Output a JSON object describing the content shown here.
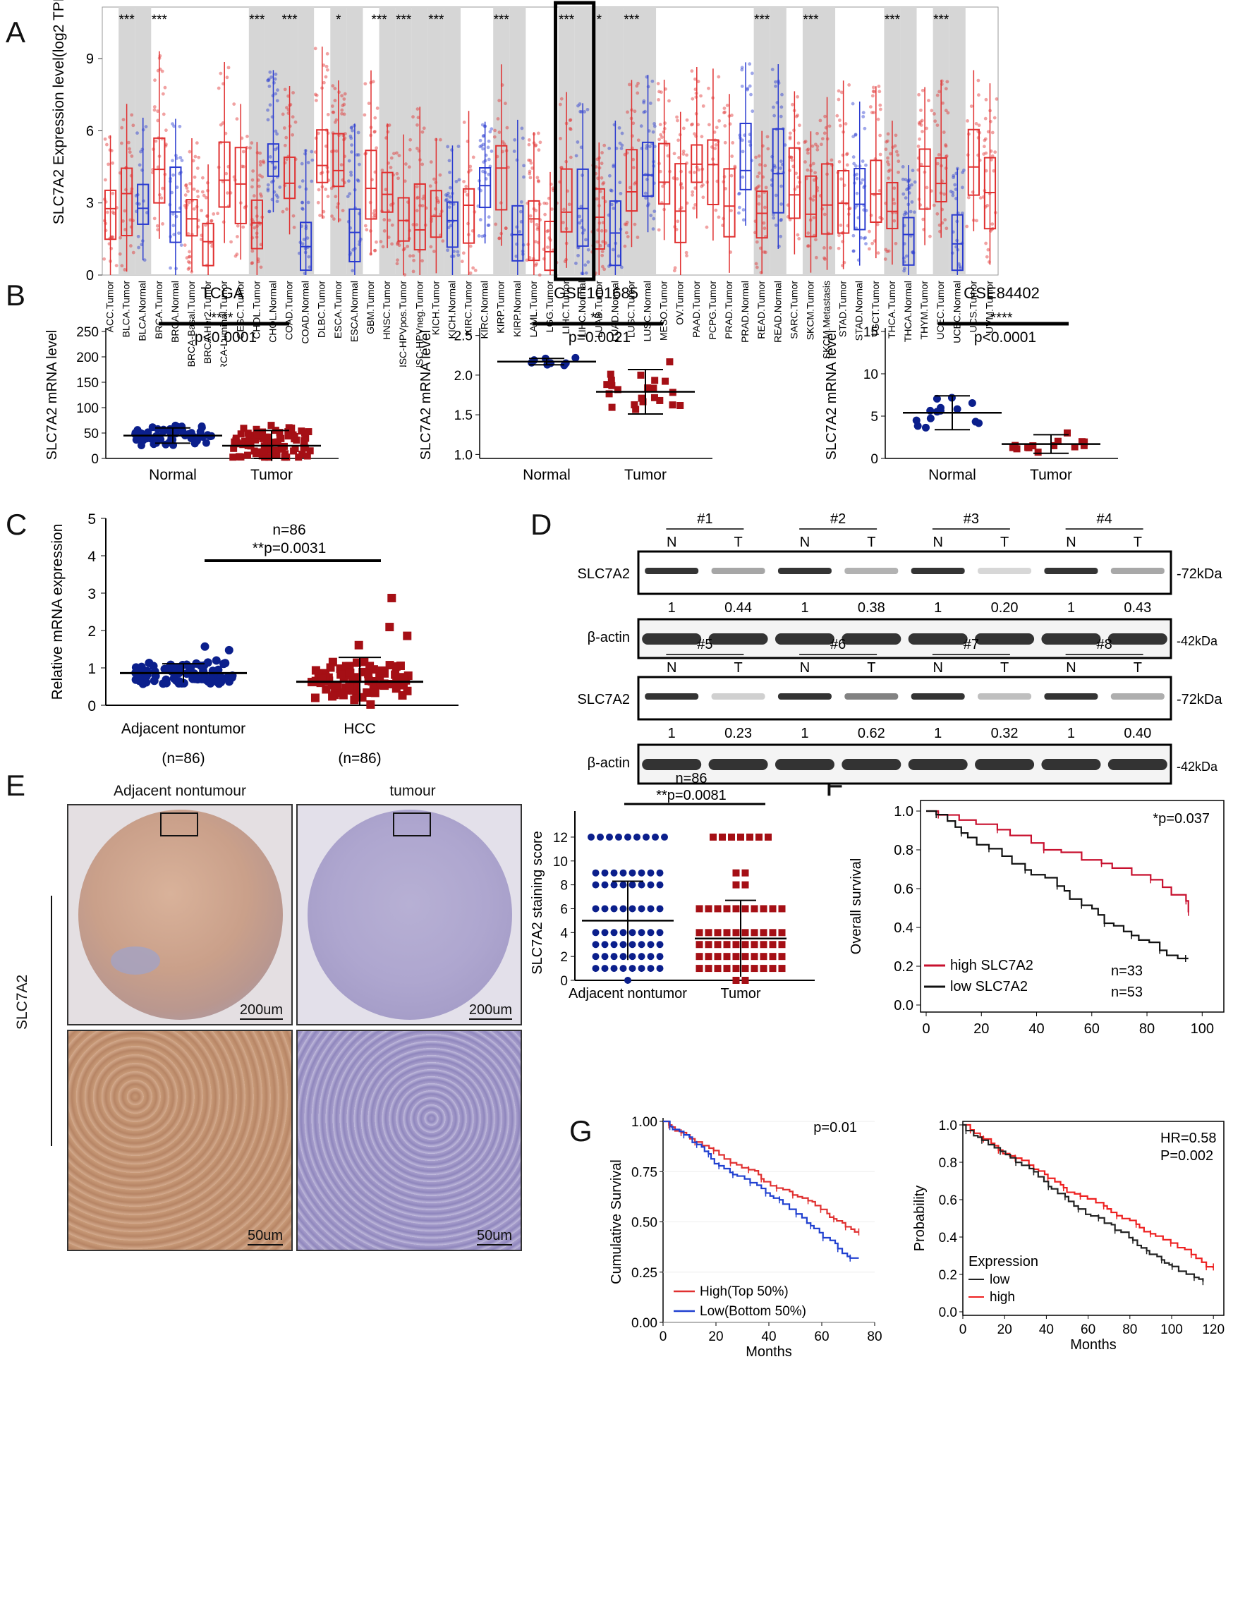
{
  "panels": {
    "a": "A",
    "b": "B",
    "c": "C",
    "d": "D",
    "e": "E",
    "f": "F",
    "g": "G"
  },
  "panel_a": {
    "ylabel": "SLC7A2 Expression level(log2 TPM)",
    "yticks": [
      "0",
      "3",
      "6",
      "9"
    ],
    "categories": [
      "ACC.Tumor",
      "BLCA.Tumor",
      "BLCA.Normal",
      "BRCA.Tumor",
      "BRCA.Normal",
      "BRCA-Basal.Tumor",
      "BRCA-Her2.Tumor",
      "BRCA-Luminal.Tumor",
      "CESC.Tumor",
      "CHOL.Tumor",
      "CHOL.Normal",
      "COAD.Tumor",
      "COAD.Normal",
      "DLBC.Tumor",
      "ESCA.Tumor",
      "ESCA.Normal",
      "GBM.Tumor",
      "HNSC.Tumor",
      "HNSC-HPVpos.Tumor",
      "HNSC-HPVneg.Tumor",
      "KICH.Tumor",
      "KICH.Normal",
      "KIRC.Tumor",
      "KIRC.Normal",
      "KIRP.Tumor",
      "KIRP.Normal",
      "LAML.Tumor",
      "LGG.Tumor",
      "LIHC.Tumor",
      "LIHC.Normal",
      "LUAD.Tumor",
      "LUAD.Normal",
      "LUSC.Tumor",
      "LUSC.Normal",
      "MESO.Tumor",
      "OV.Tumor",
      "PAAD.Tumor",
      "PCPG.Tumor",
      "PRAD.Tumor",
      "PRAD.Normal",
      "READ.Tumor",
      "READ.Normal",
      "SARC.Tumor",
      "SKCM.Tumor",
      "SKCM.Metastasis",
      "STAD.Tumor",
      "STAD.Normal",
      "TGCT.Tumor",
      "THCA.Tumor",
      "THCA.Normal",
      "THYM.Tumor",
      "UCEC.Tumor",
      "UCEC.Normal",
      "UCS.Tumor",
      "UVM.Tumor"
    ],
    "significance": [
      {
        "x": 1.5,
        "label": "***"
      },
      {
        "x": 3.5,
        "label": "***"
      },
      {
        "x": 9.5,
        "label": "***"
      },
      {
        "x": 11.5,
        "label": "***"
      },
      {
        "x": 14.5,
        "label": "*"
      },
      {
        "x": 17,
        "label": "***"
      },
      {
        "x": 18.5,
        "label": "***"
      },
      {
        "x": 20.5,
        "label": "***"
      },
      {
        "x": 24.5,
        "label": "***"
      },
      {
        "x": 28.5,
        "label": "***"
      },
      {
        "x": 30.5,
        "label": "*"
      },
      {
        "x": 32.5,
        "label": "***"
      },
      {
        "x": 40.5,
        "label": "***"
      },
      {
        "x": 43.5,
        "label": "***"
      },
      {
        "x": 48.5,
        "label": "***"
      },
      {
        "x": 51.5,
        "label": "***"
      }
    ]
  },
  "panel_b": [
    {
      "title": "TCGA",
      "stars": "****",
      "p": "p<0.0001",
      "ylabel": "SLC7A2 mRNA level",
      "yticks": [
        "0",
        "50",
        "100",
        "150",
        "200",
        "250"
      ],
      "xlabels": [
        "Normal",
        "Tumor"
      ]
    },
    {
      "title": "GSE101685",
      "stars": "**",
      "p": "p=0.0021",
      "ylabel": "SLC7A2 mRNA level",
      "yticks": [
        "1.0",
        "1.5",
        "2.0",
        "2.5"
      ],
      "xlabels": [
        "Normal",
        "Tumor"
      ]
    },
    {
      "title": "GSE84402",
      "stars": "****",
      "p": "p<0.0001",
      "ylabel": "SLC7A2 mRNA level",
      "yticks": [
        "0",
        "5",
        "10",
        "15"
      ],
      "xlabels": [
        "Normal",
        "Tumor"
      ]
    }
  ],
  "panel_c": {
    "n": "n=86",
    "p": "**p=0.0031",
    "ylabel": "Relative mRNA expression",
    "yticks": [
      "0",
      "1",
      "2",
      "3",
      "4",
      "5"
    ],
    "xlabels": [
      "Adjacent nontumor",
      "HCC"
    ],
    "ns": [
      "(n=86)",
      "(n=86)"
    ]
  },
  "panel_d": {
    "blots": [
      {
        "samples": [
          "#1",
          "#2",
          "#3",
          "#4"
        ],
        "ratios": [
          "1",
          "0.44",
          "1",
          "0.38",
          "1",
          "0.20",
          "1",
          "0.43"
        ]
      },
      {
        "samples": [
          "#5",
          "#6",
          "#7",
          "#8"
        ],
        "ratios": [
          "1",
          "0.23",
          "1",
          "0.62",
          "1",
          "0.32",
          "1",
          "0.40"
        ]
      }
    ],
    "lane_labels": [
      "N",
      "T"
    ],
    "target": "SLC7A2",
    "control": "β-actin",
    "mw_target": "-72kDa",
    "mw_control": "-42kDa"
  },
  "panel_e": {
    "col_titles": [
      "Adjacent nontumour",
      "tumour"
    ],
    "row_label": "SLC7A2",
    "scale_large": "200um",
    "scale_small": "50um",
    "n": "n=86",
    "p": "**p=0.0081",
    "ylabel": "SLC7A2 staining score",
    "yticks": [
      "0",
      "2",
      "4",
      "6",
      "8",
      "10",
      "12"
    ],
    "xlabels": [
      "Adjacent nontumor",
      "Tumor"
    ]
  },
  "panel_f": {
    "p": "*p=0.037",
    "ylabel": "Overall survival",
    "xlabel": "Months",
    "yticks": [
      "0.0",
      "0.2",
      "0.4",
      "0.6",
      "0.8",
      "1.0"
    ],
    "xticks": [
      "0",
      "20",
      "40",
      "60",
      "80",
      "100"
    ],
    "legend": [
      {
        "label": "high SLC7A2",
        "n": "n=33",
        "color": "#c8102e"
      },
      {
        "label": "low SLC7A2",
        "n": "n=53",
        "color": "#111111"
      }
    ]
  },
  "panel_g1": {
    "p": "p=0.01",
    "ylabel": "Cumulative Survival",
    "xlabel": "Months",
    "yticks": [
      "0.00",
      "0.25",
      "0.50",
      "0.75",
      "1.00"
    ],
    "xticks": [
      "0",
      "20",
      "40",
      "60",
      "80"
    ],
    "legend": [
      {
        "label": "High(Top 50%)",
        "color": "#e03030"
      },
      {
        "label": "Low(Bottom 50%)",
        "color": "#2040d0"
      }
    ]
  },
  "panel_g2": {
    "hr": "HR=0.58",
    "p": "P=0.002",
    "ylabel": "Probability",
    "xlabel": "Months",
    "yticks": [
      "0.0",
      "0.2",
      "0.4",
      "0.6",
      "0.8",
      "1.0"
    ],
    "xticks": [
      "0",
      "20",
      "40",
      "60",
      "80",
      "100",
      "120"
    ],
    "legend_title": "Expression",
    "legend": [
      {
        "label": "low",
        "color": "#222222"
      },
      {
        "label": "high",
        "color": "#ee2020"
      }
    ]
  },
  "colors": {
    "tumor": "#e03030",
    "normal": "#2a3bd0",
    "dark_red": "#a50f15",
    "navy": "#0b1f8c"
  }
}
